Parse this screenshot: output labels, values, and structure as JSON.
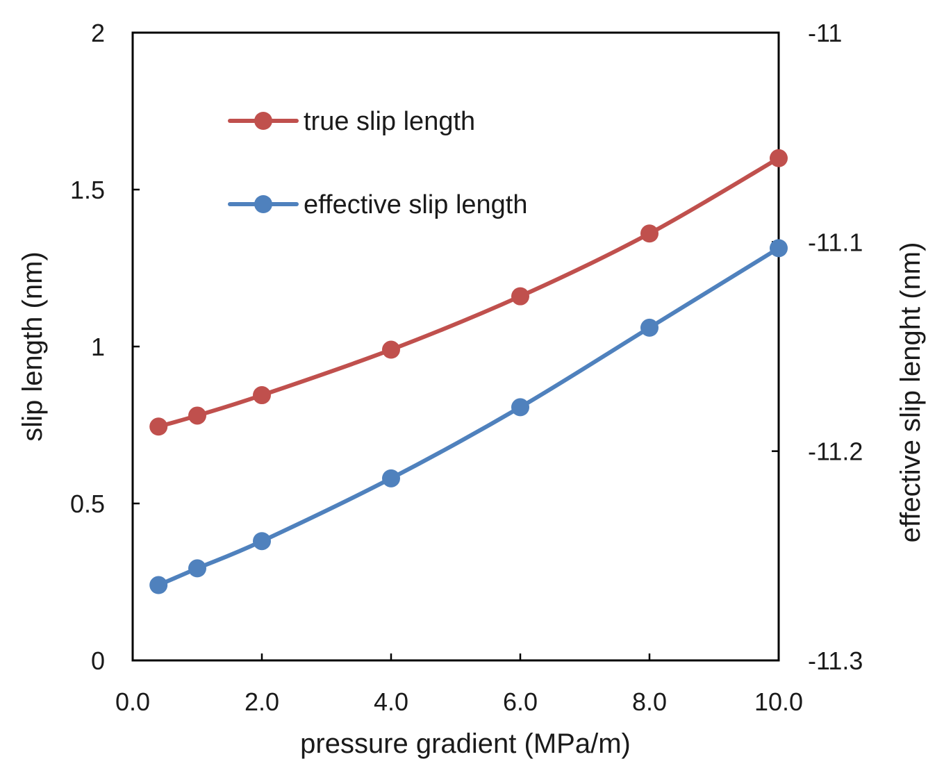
{
  "chart_data": {
    "type": "line",
    "title": "",
    "xlabel": "pressure gradient (MPa/m)",
    "ylabel": "slip length (nm)",
    "y2label": "effective slip lenght (nm)",
    "xlim": [
      0,
      10
    ],
    "ylim": [
      0,
      2
    ],
    "y2lim": [
      -11.3,
      -11
    ],
    "xticks": [
      "0.0",
      "2.0",
      "4.0",
      "6.0",
      "8.0",
      "10.0"
    ],
    "xtick_values": [
      0,
      2,
      4,
      6,
      8,
      10
    ],
    "yticks": [
      "0",
      "0.5",
      "1",
      "1.5",
      "2"
    ],
    "ytick_values": [
      0,
      0.5,
      1,
      1.5,
      2
    ],
    "y2ticks": [
      "-11.3",
      "-11.2",
      "-11.1",
      "-11"
    ],
    "y2tick_values": [
      -11.3,
      -11.2,
      -11.1,
      -11
    ],
    "grid": false,
    "legend_position": "top-left",
    "series": [
      {
        "name": "true slip length",
        "axis": "left",
        "color": "#c0504d",
        "x": [
          0.4,
          1.0,
          2.0,
          4.0,
          6.0,
          8.0,
          10.0
        ],
        "values": [
          0.745,
          0.78,
          0.845,
          0.99,
          1.16,
          1.36,
          1.6
        ]
      },
      {
        "name": "effective slip length",
        "axis": "right",
        "color": "#4f81bd",
        "x": [
          0.4,
          1.0,
          2.0,
          4.0,
          6.0,
          8.0,
          10.0
        ],
        "values": [
          -11.264,
          -11.256,
          -11.243,
          -11.213,
          -11.179,
          -11.141,
          -11.103
        ]
      }
    ]
  }
}
